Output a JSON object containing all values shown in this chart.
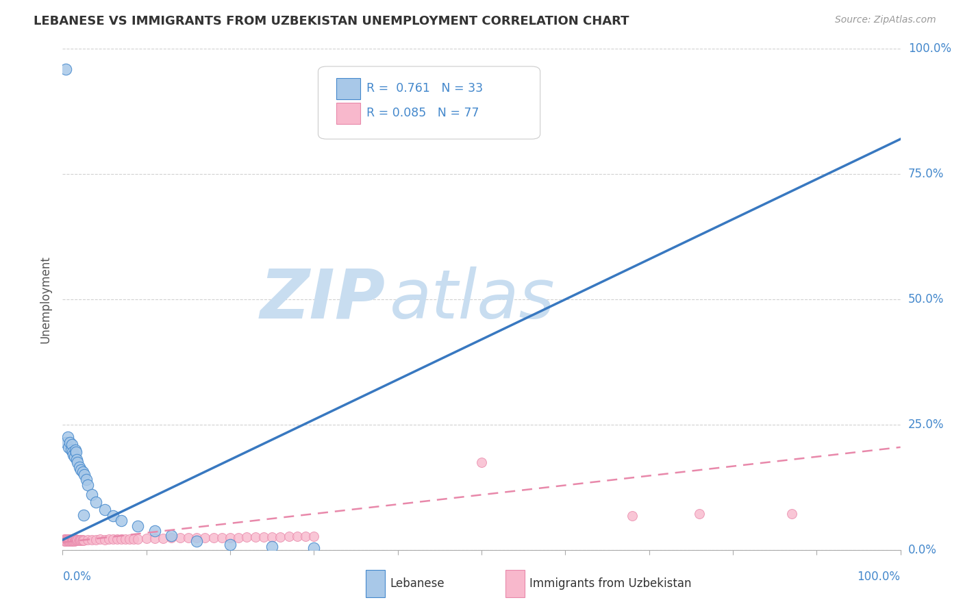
{
  "title": "LEBANESE VS IMMIGRANTS FROM UZBEKISTAN UNEMPLOYMENT CORRELATION CHART",
  "source": "Source: ZipAtlas.com",
  "ylabel": "Unemployment",
  "y_tick_labels": [
    "0.0%",
    "25.0%",
    "50.0%",
    "75.0%",
    "100.0%"
  ],
  "y_tick_vals": [
    0.0,
    0.25,
    0.5,
    0.75,
    1.0
  ],
  "x_left_label": "0.0%",
  "x_right_label": "100.0%",
  "blue_label": "Lebanese",
  "pink_label": "Immigrants from Uzbekistan",
  "blue_R": "0.761",
  "blue_N": "33",
  "pink_R": "0.085",
  "pink_N": "77",
  "blue_fill": "#a8c8e8",
  "blue_edge": "#4488cc",
  "pink_fill": "#f8b8cc",
  "pink_edge": "#e888aa",
  "blue_line_color": "#3878c0",
  "pink_line_color": "#e888aa",
  "grid_color": "#cccccc",
  "title_color": "#333333",
  "source_color": "#999999",
  "label_color": "#4488cc",
  "watermark_zip": "ZIP",
  "watermark_atlas": "atlas",
  "watermark_color": "#c8ddf0",
  "bg_color": "#ffffff",
  "xlim": [
    0.0,
    1.0
  ],
  "ylim": [
    0.0,
    1.0
  ],
  "blue_scatter": [
    [
      0.004,
      0.215
    ],
    [
      0.006,
      0.225
    ],
    [
      0.007,
      0.205
    ],
    [
      0.009,
      0.215
    ],
    [
      0.01,
      0.2
    ],
    [
      0.011,
      0.21
    ],
    [
      0.012,
      0.195
    ],
    [
      0.013,
      0.19
    ],
    [
      0.014,
      0.185
    ],
    [
      0.015,
      0.2
    ],
    [
      0.016,
      0.195
    ],
    [
      0.017,
      0.18
    ],
    [
      0.018,
      0.175
    ],
    [
      0.02,
      0.165
    ],
    [
      0.022,
      0.16
    ],
    [
      0.024,
      0.155
    ],
    [
      0.026,
      0.15
    ],
    [
      0.028,
      0.14
    ],
    [
      0.03,
      0.13
    ],
    [
      0.035,
      0.11
    ],
    [
      0.04,
      0.095
    ],
    [
      0.05,
      0.08
    ],
    [
      0.06,
      0.068
    ],
    [
      0.07,
      0.058
    ],
    [
      0.09,
      0.048
    ],
    [
      0.11,
      0.038
    ],
    [
      0.13,
      0.028
    ],
    [
      0.16,
      0.018
    ],
    [
      0.2,
      0.01
    ],
    [
      0.25,
      0.006
    ],
    [
      0.3,
      0.004
    ],
    [
      0.004,
      0.96
    ],
    [
      0.025,
      0.07
    ]
  ],
  "pink_scatter": [
    [
      0.001,
      0.02
    ],
    [
      0.002,
      0.022
    ],
    [
      0.002,
      0.018
    ],
    [
      0.003,
      0.021
    ],
    [
      0.003,
      0.019
    ],
    [
      0.004,
      0.02
    ],
    [
      0.004,
      0.018
    ],
    [
      0.005,
      0.021
    ],
    [
      0.005,
      0.019
    ],
    [
      0.006,
      0.02
    ],
    [
      0.006,
      0.018
    ],
    [
      0.007,
      0.021
    ],
    [
      0.007,
      0.019
    ],
    [
      0.008,
      0.02
    ],
    [
      0.008,
      0.018
    ],
    [
      0.009,
      0.021
    ],
    [
      0.009,
      0.019
    ],
    [
      0.01,
      0.02
    ],
    [
      0.01,
      0.018
    ],
    [
      0.011,
      0.02
    ],
    [
      0.011,
      0.019
    ],
    [
      0.012,
      0.021
    ],
    [
      0.012,
      0.018
    ],
    [
      0.013,
      0.02
    ],
    [
      0.013,
      0.019
    ],
    [
      0.014,
      0.02
    ],
    [
      0.014,
      0.018
    ],
    [
      0.015,
      0.021
    ],
    [
      0.015,
      0.019
    ],
    [
      0.016,
      0.02
    ],
    [
      0.017,
      0.019
    ],
    [
      0.018,
      0.02
    ],
    [
      0.019,
      0.019
    ],
    [
      0.02,
      0.02
    ],
    [
      0.021,
      0.019
    ],
    [
      0.022,
      0.02
    ],
    [
      0.023,
      0.019
    ],
    [
      0.024,
      0.02
    ],
    [
      0.025,
      0.019
    ],
    [
      0.03,
      0.02
    ],
    [
      0.035,
      0.02
    ],
    [
      0.04,
      0.02
    ],
    [
      0.045,
      0.021
    ],
    [
      0.05,
      0.02
    ],
    [
      0.055,
      0.021
    ],
    [
      0.06,
      0.021
    ],
    [
      0.065,
      0.021
    ],
    [
      0.07,
      0.021
    ],
    [
      0.075,
      0.022
    ],
    [
      0.08,
      0.022
    ],
    [
      0.085,
      0.022
    ],
    [
      0.09,
      0.022
    ],
    [
      0.1,
      0.023
    ],
    [
      0.11,
      0.023
    ],
    [
      0.12,
      0.023
    ],
    [
      0.13,
      0.024
    ],
    [
      0.14,
      0.024
    ],
    [
      0.15,
      0.024
    ],
    [
      0.16,
      0.024
    ],
    [
      0.17,
      0.025
    ],
    [
      0.18,
      0.025
    ],
    [
      0.19,
      0.025
    ],
    [
      0.2,
      0.025
    ],
    [
      0.21,
      0.025
    ],
    [
      0.22,
      0.026
    ],
    [
      0.23,
      0.026
    ],
    [
      0.24,
      0.026
    ],
    [
      0.25,
      0.026
    ],
    [
      0.26,
      0.026
    ],
    [
      0.27,
      0.027
    ],
    [
      0.28,
      0.027
    ],
    [
      0.29,
      0.027
    ],
    [
      0.3,
      0.027
    ],
    [
      0.5,
      0.175
    ],
    [
      0.68,
      0.068
    ],
    [
      0.76,
      0.072
    ],
    [
      0.87,
      0.072
    ]
  ],
  "blue_trend_x": [
    0.0,
    1.0
  ],
  "blue_trend_y": [
    0.02,
    0.82
  ],
  "pink_trend_x": [
    0.0,
    1.0
  ],
  "pink_trend_y": [
    0.015,
    0.205
  ]
}
